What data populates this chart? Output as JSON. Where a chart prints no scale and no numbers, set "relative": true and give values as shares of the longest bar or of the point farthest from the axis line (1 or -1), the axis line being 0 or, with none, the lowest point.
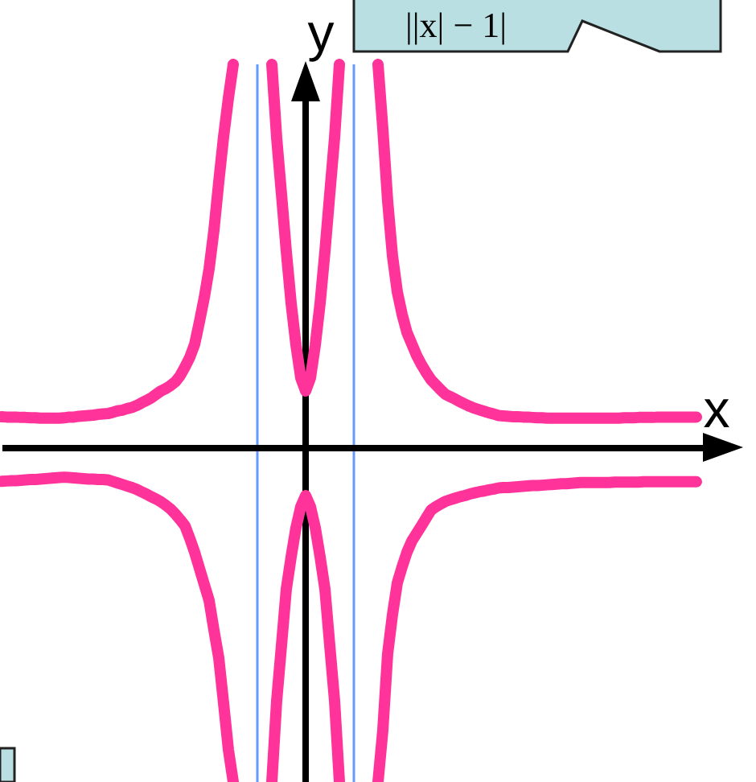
{
  "chart_data": {
    "type": "line",
    "relative": true,
    "xlabel": "x",
    "ylabel": "y",
    "annotations": [
      "||x| − 1|"
    ],
    "categories": [
      null,
      null,
      null,
      null,
      null,
      null,
      null,
      null,
      null,
      null,
      null,
      null,
      null,
      null,
      null,
      null,
      null,
      null,
      null,
      null,
      null,
      null,
      null,
      null,
      null,
      null,
      null,
      null,
      null,
      null,
      null,
      null,
      null,
      null,
      null,
      null,
      null,
      null,
      null,
      null,
      null,
      null,
      null,
      null,
      null,
      null,
      null,
      null,
      null,
      null,
      null,
      null,
      null,
      null,
      null,
      null,
      null,
      null,
      null,
      null,
      null,
      null,
      null,
      null,
      null,
      null,
      null,
      null,
      null,
      null,
      null,
      null,
      null,
      null,
      null,
      null,
      null,
      null,
      null,
      null,
      null,
      null,
      null,
      null,
      null,
      null,
      null,
      null,
      null,
      null,
      null,
      null,
      null,
      null,
      null,
      null,
      null,
      null,
      null,
      null,
      null,
      null,
      null,
      null,
      null,
      null,
      null,
      null,
      null,
      null,
      null,
      null,
      null,
      null,
      null,
      null,
      null,
      null,
      null,
      null,
      null,
      null,
      null,
      null,
      null,
      null,
      null,
      null,
      null,
      null,
      null,
      null,
      null,
      null,
      null,
      null,
      null,
      null,
      null,
      null,
      null,
      null,
      null,
      null,
      null,
      null,
      null,
      null,
      null
    ],
    "series": [
      {
        "color": "#ff3399",
        "values": [
          0.08,
          0.079,
          0.079,
          0.079,
          0.078,
          0.078,
          0.077,
          0.077,
          0.076,
          0.076,
          0.076,
          0.076,
          0.076,
          0.077,
          0.079,
          0.079,
          0.081,
          0.082,
          0.083,
          0.084,
          0.086,
          0.087,
          0.088,
          0.091,
          0.095,
          0.097,
          0.101,
          0.104,
          0.109,
          0.116,
          0.122,
          0.129,
          0.138,
          0.147,
          0.153,
          0.161,
          0.171,
          0.187,
          0.21,
          0.235,
          0.269,
          0.328,
          0.391,
          0.466,
          0.567,
          0.693,
          0.811,
          0.912,
          1,
          null,
          null,
          null,
          null,
          null,
          null,
          null,
          null,
          null,
          null,
          null,
          null,
          null,
          null,
          null,
          null,
          null,
          null,
          null,
          null,
          null,
          null,
          null,
          null,
          null,
          null,
          null,
          null,
          null,
          null,
          null,
          null,
          null,
          null,
          null,
          null,
          null,
          null,
          null,
          null,
          null,
          null,
          null,
          null,
          null,
          null,
          null,
          null,
          null,
          null,
          null,
          null,
          null,
          null,
          null,
          null,
          null,
          null,
          null,
          null,
          null,
          null,
          null,
          null,
          null,
          null,
          null,
          null,
          null,
          null,
          null,
          null,
          null,
          null,
          null,
          null,
          null,
          null,
          null,
          null,
          null,
          null,
          null,
          null,
          null,
          null,
          null,
          null,
          null,
          null,
          null,
          null,
          null,
          null,
          null,
          null,
          null,
          null,
          null,
          null
        ]
      },
      {
        "color": "#ff3399",
        "values": [
          -0.089,
          -0.088,
          -0.087,
          -0.087,
          -0.086,
          -0.085,
          -0.084,
          -0.084,
          -0.083,
          -0.082,
          -0.081,
          -0.08,
          -0.079,
          -0.078,
          -0.079,
          -0.08,
          -0.081,
          -0.082,
          -0.083,
          -0.083,
          -0.084,
          -0.084,
          -0.085,
          -0.089,
          -0.093,
          -0.097,
          -0.101,
          -0.105,
          -0.11,
          -0.116,
          -0.122,
          -0.129,
          -0.135,
          -0.142,
          -0.151,
          -0.161,
          -0.174,
          -0.189,
          -0.205,
          -0.238,
          -0.274,
          -0.316,
          -0.358,
          -0.4,
          -0.477,
          -0.55,
          -0.668,
          -0.79,
          -0.874,
          null,
          null,
          null,
          null,
          null,
          null,
          null,
          null,
          null,
          null,
          null,
          null,
          null,
          null,
          null,
          null,
          null,
          null,
          null,
          null,
          null,
          null,
          null,
          null,
          null,
          null,
          null,
          null,
          null,
          null,
          null,
          null,
          null,
          null,
          null,
          null,
          null,
          null,
          null,
          null,
          null,
          null,
          null,
          null,
          null,
          null,
          null,
          null,
          null,
          null,
          null,
          null,
          null,
          null,
          null,
          null,
          null,
          null,
          null,
          null,
          null,
          null,
          null,
          null,
          null,
          null,
          null,
          null,
          null,
          null,
          null,
          null,
          null,
          null,
          null,
          null,
          null,
          null,
          null,
          null,
          null,
          null,
          null,
          null,
          null,
          null,
          null,
          null,
          null,
          null,
          null,
          null,
          null,
          null,
          null,
          null,
          null,
          null,
          null,
          null
        ]
      },
      {
        "color": "#ff3399",
        "values": [
          null,
          null,
          null,
          null,
          null,
          null,
          null,
          null,
          null,
          null,
          null,
          null,
          null,
          null,
          null,
          null,
          null,
          null,
          null,
          null,
          null,
          null,
          null,
          null,
          null,
          null,
          null,
          null,
          null,
          null,
          null,
          null,
          null,
          null,
          null,
          null,
          null,
          null,
          null,
          null,
          null,
          null,
          null,
          null,
          null,
          null,
          null,
          null,
          null,
          null,
          null,
          null,
          null,
          null,
          null,
          null,
          1,
          0.808,
          0.661,
          0.511,
          0.376,
          0.267,
          0.181,
          0.147,
          0.181,
          0.267,
          0.376,
          0.511,
          0.661,
          0.808,
          1,
          null,
          null,
          null,
          null,
          null,
          null,
          null,
          null,
          null,
          null,
          null,
          null,
          null,
          null,
          null,
          null,
          null,
          null,
          null,
          null,
          null,
          null,
          null,
          null,
          null,
          null,
          null,
          null,
          null,
          null,
          null,
          null,
          null,
          null,
          null,
          null,
          null,
          null,
          null,
          null,
          null,
          null,
          null,
          null,
          null,
          null,
          null,
          null,
          null,
          null,
          null,
          null,
          null,
          null,
          null,
          null,
          null,
          null,
          null,
          null,
          null,
          null,
          null,
          null,
          null,
          null,
          null,
          null,
          null,
          null,
          null,
          null,
          null,
          null,
          null,
          null,
          null,
          null
        ]
      },
      {
        "color": "#ff3399",
        "values": [
          null,
          null,
          null,
          null,
          null,
          null,
          null,
          null,
          null,
          null,
          null,
          null,
          null,
          null,
          null,
          null,
          null,
          null,
          null,
          null,
          null,
          null,
          null,
          null,
          null,
          null,
          null,
          null,
          null,
          null,
          null,
          null,
          null,
          null,
          null,
          null,
          null,
          null,
          null,
          null,
          null,
          null,
          null,
          null,
          null,
          null,
          null,
          null,
          null,
          null,
          null,
          null,
          null,
          null,
          null,
          null,
          -0.874,
          -0.662,
          -0.517,
          -0.37,
          -0.286,
          -0.21,
          -0.155,
          -0.126,
          -0.155,
          -0.21,
          -0.286,
          -0.37,
          -0.517,
          -0.662,
          -0.874,
          null,
          null,
          null,
          null,
          null,
          null,
          null,
          null,
          null,
          null,
          null,
          null,
          null,
          null,
          null,
          null,
          null,
          null,
          null,
          null,
          null,
          null,
          null,
          null,
          null,
          null,
          null,
          null,
          null,
          null,
          null,
          null,
          null,
          null,
          null,
          null,
          null,
          null,
          null,
          null,
          null,
          null,
          null,
          null,
          null,
          null,
          null,
          null,
          null,
          null,
          null,
          null,
          null,
          null,
          null,
          null,
          null,
          null,
          null,
          null,
          null,
          null,
          null,
          null,
          null,
          null,
          null,
          null,
          null,
          null,
          null,
          null,
          null,
          null,
          null,
          null,
          null,
          null
        ]
      },
      {
        "color": "#ff3399",
        "values": [
          null,
          null,
          null,
          null,
          null,
          null,
          null,
          null,
          null,
          null,
          null,
          null,
          null,
          null,
          null,
          null,
          null,
          null,
          null,
          null,
          null,
          null,
          null,
          null,
          null,
          null,
          null,
          null,
          null,
          null,
          null,
          null,
          null,
          null,
          null,
          null,
          null,
          null,
          null,
          null,
          null,
          null,
          null,
          null,
          null,
          null,
          null,
          null,
          null,
          null,
          null,
          null,
          null,
          null,
          null,
          null,
          null,
          null,
          null,
          null,
          null,
          null,
          null,
          null,
          null,
          null,
          null,
          null,
          null,
          null,
          null,
          null,
          null,
          null,
          null,
          null,
          null,
          null,
          1,
          0.832,
          0.643,
          0.5,
          0.406,
          0.347,
          0.3,
          0.27,
          0.24,
          0.216,
          0.195,
          0.176,
          0.163,
          0.15,
          0.138,
          0.132,
          0.126,
          0.119,
          0.113,
          0.107,
          0.102,
          0.098,
          0.094,
          0.09,
          0.087,
          0.083,
          0.082,
          0.081,
          0.08,
          0.08,
          0.079,
          0.079,
          0.078,
          0.077,
          0.077,
          0.076,
          0.076,
          0.076,
          0.076,
          0.076,
          0.076,
          0.076,
          0.076,
          0.076,
          0.076,
          0.076,
          0.076,
          0.076,
          0.076,
          0.076,
          0.076,
          0.077,
          0.077,
          0.077,
          0.078,
          0.078,
          0.078,
          0.078,
          0.079,
          0.079,
          0.079,
          0.079,
          0.079,
          0.079,
          0.079,
          0.079,
          0.079,
          null,
          null,
          null,
          null
        ]
      },
      {
        "color": "#ff3399",
        "values": [
          null,
          null,
          null,
          null,
          null,
          null,
          null,
          null,
          null,
          null,
          null,
          null,
          null,
          null,
          null,
          null,
          null,
          null,
          null,
          null,
          null,
          null,
          null,
          null,
          null,
          null,
          null,
          null,
          null,
          null,
          null,
          null,
          null,
          null,
          null,
          null,
          null,
          null,
          null,
          null,
          null,
          null,
          null,
          null,
          null,
          null,
          null,
          null,
          null,
          null,
          null,
          null,
          null,
          null,
          null,
          null,
          null,
          null,
          null,
          null,
          null,
          null,
          null,
          null,
          null,
          null,
          null,
          null,
          null,
          null,
          null,
          null,
          null,
          null,
          null,
          null,
          null,
          null,
          -0.874,
          -0.739,
          -0.539,
          -0.437,
          -0.354,
          -0.312,
          -0.274,
          -0.245,
          -0.225,
          -0.205,
          -0.184,
          -0.164,
          -0.155,
          -0.148,
          -0.141,
          -0.137,
          -0.133,
          -0.129,
          -0.126,
          -0.122,
          -0.119,
          -0.116,
          -0.114,
          -0.111,
          -0.109,
          -0.106,
          -0.105,
          -0.105,
          -0.104,
          -0.103,
          -0.102,
          -0.101,
          -0.1,
          -0.1,
          -0.099,
          -0.098,
          -0.097,
          -0.096,
          -0.095,
          -0.095,
          -0.094,
          -0.093,
          -0.092,
          -0.092,
          -0.092,
          -0.092,
          -0.092,
          -0.092,
          -0.092,
          -0.091,
          -0.091,
          -0.091,
          -0.091,
          -0.091,
          -0.091,
          -0.09,
          -0.09,
          -0.09,
          -0.09,
          -0.09,
          -0.09,
          -0.09,
          -0.09,
          -0.09,
          -0.09,
          -0.09,
          -0.09,
          null,
          null,
          null,
          null
        ]
      }
    ]
  }
}
